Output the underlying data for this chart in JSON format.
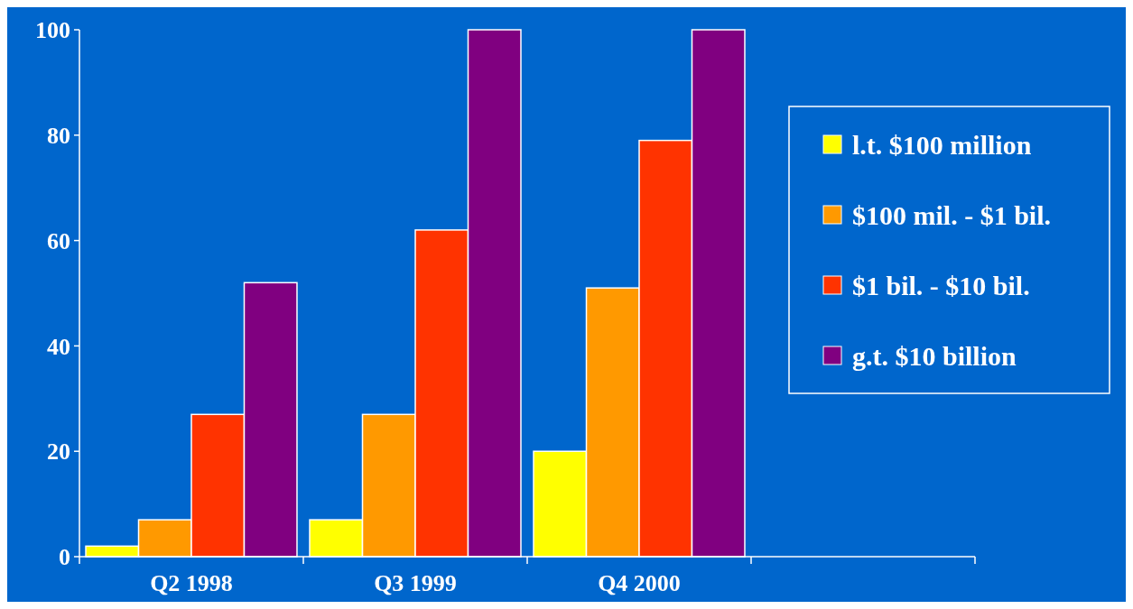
{
  "chart_data": {
    "type": "bar",
    "categories": [
      "Q2 1998",
      "Q3 1999",
      "Q4 2000",
      null
    ],
    "series": [
      {
        "name": "l.t. $100 million",
        "color": "#ffff00",
        "values": [
          2,
          7,
          20,
          null
        ]
      },
      {
        "name": "$100 mil. - $1 bil.",
        "color": "#ff9900",
        "values": [
          7,
          27,
          51,
          null
        ]
      },
      {
        "name": "$1 bil. - $10 bil.",
        "color": "#ff3300",
        "values": [
          27,
          62,
          79,
          null
        ]
      },
      {
        "name": "g.t. $10 billion",
        "color": "#800080",
        "values": [
          52,
          100,
          100,
          null
        ]
      }
    ],
    "ylim": [
      0,
      100
    ],
    "yticks": [
      0,
      20,
      40,
      60,
      80,
      100
    ],
    "grid": false,
    "legend": "right"
  }
}
